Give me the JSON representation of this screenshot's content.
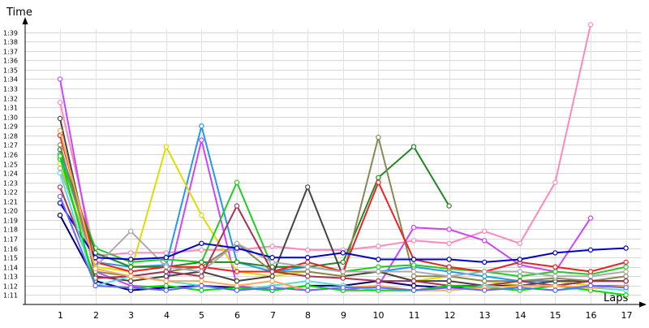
{
  "chart_data": {
    "type": "line",
    "title": "",
    "xlabel": "Laps",
    "ylabel": "Time",
    "x": [
      1,
      2,
      3,
      4,
      5,
      6,
      7,
      8,
      9,
      10,
      11,
      12,
      13,
      14,
      15,
      16,
      17
    ],
    "ylim": [
      70,
      100
    ],
    "y_ticks": [
      71,
      72,
      73,
      74,
      75,
      76,
      77,
      78,
      79,
      80,
      81,
      82,
      83,
      84,
      85,
      86,
      87,
      88,
      89,
      90,
      91,
      92,
      93,
      94,
      95,
      96,
      97,
      98,
      99
    ],
    "y_tick_labels": [
      "1:11",
      "1:12",
      "1:13",
      "1:14",
      "1:15",
      "1:16",
      "1:17",
      "1:18",
      "1:19",
      "1:20",
      "1:21",
      "1:22",
      "1:23",
      "1:24",
      "1:25",
      "1:26",
      "1:27",
      "1:28",
      "1:29",
      "1:30",
      "1:31",
      "1:32",
      "1:33",
      "1:34",
      "1:35",
      "1:36",
      "1:37",
      "1:38",
      "1:39"
    ],
    "x_tick_labels": [
      "1",
      "2",
      "3",
      "4",
      "5",
      "6",
      "7",
      "8",
      "9",
      "10",
      "11",
      "12",
      "13",
      "14",
      "15",
      "16",
      "17"
    ],
    "grid": true,
    "legend": "none",
    "series": [
      {
        "color": "#ff88bb",
        "values": [
          91.5,
          75.2,
          75.5,
          75.5,
          75.8,
          75.8,
          76.2,
          75.8,
          75.8,
          76.2,
          76.8,
          76.5,
          77.8,
          76.5,
          83.0,
          99.8,
          null
        ]
      },
      {
        "color": "#cc44ff",
        "values": [
          94.0,
          73.5,
          72.0,
          71.8,
          87.5,
          72.0,
          71.5,
          72.0,
          71.5,
          72.0,
          78.2,
          78.0,
          76.8,
          74.2,
          73.5,
          79.2,
          null
        ]
      },
      {
        "color": "#2299ee",
        "values": [
          86.0,
          74.5,
          74.0,
          74.2,
          89.0,
          74.5,
          73.5,
          74.0,
          73.5,
          73.5,
          74.0,
          73.5,
          73.0,
          72.5,
          72.5,
          72.0,
          72.0
        ]
      },
      {
        "color": "#dddd00",
        "values": [
          85.0,
          74.0,
          73.5,
          86.8,
          79.5,
          73.5,
          73.0,
          73.5,
          73.0,
          73.5,
          72.5,
          73.0,
          72.5,
          72.0,
          72.5,
          72.0,
          71.8
        ]
      },
      {
        "color": "#22cc22",
        "values": [
          85.5,
          76.0,
          74.5,
          74.8,
          74.5,
          83.0,
          74.0,
          74.0,
          73.5,
          74.0,
          74.2,
          73.8,
          73.5,
          73.0,
          73.5,
          73.2,
          74.0
        ]
      },
      {
        "color": "#228822",
        "values": [
          86.5,
          75.5,
          74.0,
          74.0,
          74.5,
          74.5,
          74.0,
          74.0,
          74.5,
          83.5,
          86.8,
          80.5,
          null,
          null,
          null,
          null,
          null
        ]
      },
      {
        "color": "#444444",
        "values": [
          89.8,
          73.0,
          72.5,
          73.0,
          73.5,
          72.5,
          73.0,
          82.5,
          73.0,
          73.5,
          72.5,
          72.5,
          72.0,
          72.0,
          72.5,
          72.5,
          72.5
        ]
      },
      {
        "color": "#888855",
        "values": [
          87.0,
          73.5,
          73.0,
          73.5,
          74.0,
          76.5,
          73.5,
          73.5,
          73.0,
          87.8,
          73.0,
          73.0,
          72.5,
          72.5,
          72.8,
          72.5,
          73.0
        ]
      },
      {
        "color": "#ee2222",
        "values": [
          88.0,
          74.5,
          73.5,
          74.0,
          74.0,
          73.5,
          73.5,
          74.5,
          73.5,
          83.0,
          74.8,
          74.0,
          73.5,
          74.5,
          74.0,
          73.5,
          74.5
        ]
      },
      {
        "color": "#aaaaaa",
        "values": [
          84.5,
          74.0,
          77.8,
          74.0,
          73.5,
          76.5,
          74.5,
          74.0,
          73.5,
          73.5,
          73.5,
          73.0,
          73.5,
          73.5,
          73.0,
          73.0,
          73.5
        ]
      },
      {
        "color": "#0000cc",
        "values": [
          80.8,
          75.0,
          74.8,
          75.0,
          76.5,
          76.0,
          75.0,
          75.0,
          75.5,
          74.8,
          74.8,
          74.8,
          74.5,
          74.8,
          75.5,
          75.8,
          76.0
        ]
      },
      {
        "color": "#000077",
        "values": [
          79.5,
          72.5,
          71.5,
          71.8,
          72.0,
          71.8,
          71.5,
          72.0,
          72.0,
          72.5,
          72.0,
          71.8,
          72.0,
          72.0,
          72.0,
          72.5,
          72.5
        ]
      },
      {
        "color": "#aa3355",
        "values": [
          82.5,
          72.8,
          73.0,
          73.5,
          73.0,
          80.5,
          73.5,
          73.0,
          72.8,
          72.5,
          72.5,
          72.0,
          72.0,
          72.5,
          72.0,
          72.5,
          72.5
        ]
      },
      {
        "color": "#55dddd",
        "values": [
          84.0,
          72.0,
          73.0,
          72.5,
          72.0,
          71.5,
          72.0,
          72.5,
          72.0,
          71.5,
          71.5,
          71.5,
          72.0,
          71.8,
          71.5,
          71.8,
          71.5
        ]
      },
      {
        "color": "#00dd00",
        "values": [
          85.8,
          72.0,
          71.8,
          72.0,
          71.5,
          71.8,
          71.5,
          72.0,
          71.5,
          71.5,
          71.5,
          72.0,
          71.8,
          71.5,
          72.0,
          71.5,
          71.0
        ]
      },
      {
        "color": "#ffaa55",
        "values": [
          88.5,
          73.8,
          73.0,
          72.5,
          72.5,
          72.0,
          72.5,
          71.5,
          71.8,
          72.0,
          71.5,
          71.5,
          71.8,
          72.0,
          72.0,
          71.8,
          72.0
        ]
      },
      {
        "color": "#6666ff",
        "values": [
          81.5,
          72.0,
          71.8,
          71.5,
          72.0,
          71.5,
          71.8,
          71.5,
          71.8,
          71.8,
          71.5,
          71.8,
          71.5,
          71.8,
          71.5,
          72.0,
          71.8
        ]
      }
    ]
  }
}
